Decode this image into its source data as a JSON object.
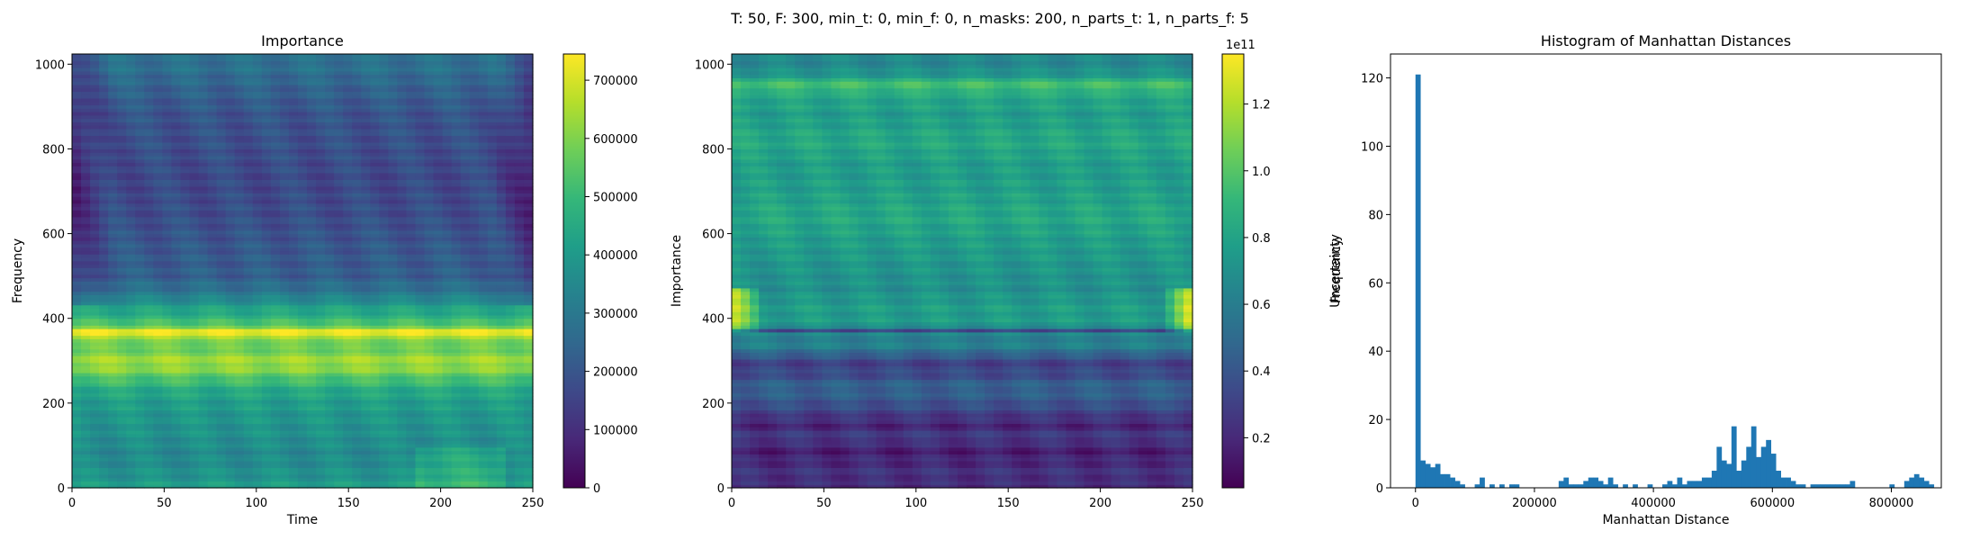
{
  "suptitle": "T: 50, F: 300, min_t: 0, min_f: 0, n_masks: 200, n_parts_t: 1, n_parts_f: 5",
  "chart_data": [
    {
      "type": "heatmap",
      "title": "Importance",
      "xlabel": "Time",
      "ylabel": "Frequency",
      "xlim": [
        0,
        250
      ],
      "ylim": [
        0,
        1024
      ],
      "xticks": [
        0,
        50,
        100,
        150,
        200,
        250
      ],
      "yticks": [
        0,
        200,
        400,
        600,
        800,
        1000
      ],
      "colormap": "viridis",
      "colorbar": {
        "label": "Importance",
        "min": 0,
        "max": 745000,
        "ticks": [
          0,
          100000,
          200000,
          300000,
          400000,
          500000,
          600000,
          700000
        ],
        "offset_text": ""
      },
      "row_profile": {
        "frequency": [
          0,
          40,
          80,
          120,
          160,
          200,
          230,
          255,
          280,
          300,
          320,
          340,
          360,
          372,
          385,
          410,
          430,
          460,
          500,
          560,
          640,
          720,
          800,
          880,
          950,
          1000,
          1024
        ],
        "level": [
          0.55,
          0.5,
          0.47,
          0.5,
          0.52,
          0.55,
          0.6,
          0.7,
          0.82,
          0.86,
          0.8,
          0.75,
          0.92,
          0.97,
          0.72,
          0.62,
          0.55,
          0.4,
          0.3,
          0.28,
          0.24,
          0.22,
          0.24,
          0.26,
          0.32,
          0.38,
          0.35
        ]
      },
      "edge_dim": 0.12
    },
    {
      "type": "heatmap",
      "title": "",
      "xlabel": "",
      "ylabel": "",
      "xlim": [
        0,
        250
      ],
      "ylim": [
        0,
        1024
      ],
      "xticks": [
        0,
        50,
        100,
        150,
        200,
        250
      ],
      "yticks": [
        0,
        200,
        400,
        600,
        800,
        1000
      ],
      "colormap": "viridis",
      "colorbar": {
        "label": "Uncertainty",
        "min": 0.05,
        "max": 1.35,
        "ticks": [
          0.2,
          0.4,
          0.6,
          0.8,
          1.0,
          1.2
        ],
        "tick_labels": [
          "0.2",
          "0.4",
          "0.6",
          "0.8",
          "1.0",
          "1.2"
        ],
        "offset_text": "1e11"
      },
      "row_profile": {
        "frequency": [
          0,
          30,
          60,
          90,
          120,
          150,
          180,
          210,
          240,
          270,
          300,
          330,
          365,
          372,
          380,
          400,
          430,
          470,
          520,
          580,
          640,
          700,
          760,
          820,
          880,
          930,
          950,
          980,
          1024
        ],
        "level": [
          0.1,
          0.15,
          0.12,
          0.08,
          0.18,
          0.1,
          0.2,
          0.28,
          0.32,
          0.22,
          0.2,
          0.42,
          0.45,
          0.2,
          0.5,
          0.55,
          0.55,
          0.5,
          0.52,
          0.55,
          0.6,
          0.56,
          0.55,
          0.6,
          0.55,
          0.6,
          0.72,
          0.5,
          0.45
        ]
      },
      "edge_bright_band": [
        370,
        470
      ]
    },
    {
      "type": "bar",
      "title": "Histogram of Manhattan Distances",
      "xlabel": "Manhattan Distance",
      "ylabel": "Frequency",
      "xlim": [
        -42000,
        884000
      ],
      "ylim": [
        0,
        127
      ],
      "xticks": [
        0,
        200000,
        400000,
        600000,
        800000
      ],
      "yticks": [
        0,
        20,
        40,
        60,
        80,
        100,
        120
      ],
      "bin_start": 0,
      "bin_width": 8300,
      "bar_color": "#1f77b4",
      "counts": [
        121,
        8,
        7,
        6,
        7,
        4,
        4,
        3,
        2,
        1,
        0,
        0,
        1,
        3,
        0,
        1,
        0,
        1,
        0,
        1,
        1,
        0,
        0,
        0,
        0,
        0,
        0,
        0,
        0,
        2,
        3,
        1,
        1,
        1,
        2,
        3,
        3,
        2,
        1,
        3,
        1,
        0,
        1,
        0,
        1,
        0,
        0,
        1,
        0,
        0,
        1,
        2,
        1,
        3,
        1,
        2,
        2,
        2,
        3,
        3,
        5,
        12,
        8,
        7,
        18,
        5,
        8,
        12,
        18,
        9,
        12,
        14,
        10,
        5,
        3,
        3,
        2,
        1,
        1,
        0,
        1,
        1,
        1,
        1,
        1,
        1,
        1,
        1,
        2,
        0,
        0,
        0,
        0,
        0,
        0,
        0,
        1,
        0,
        0,
        2,
        3,
        4,
        3,
        2,
        1
      ]
    }
  ]
}
